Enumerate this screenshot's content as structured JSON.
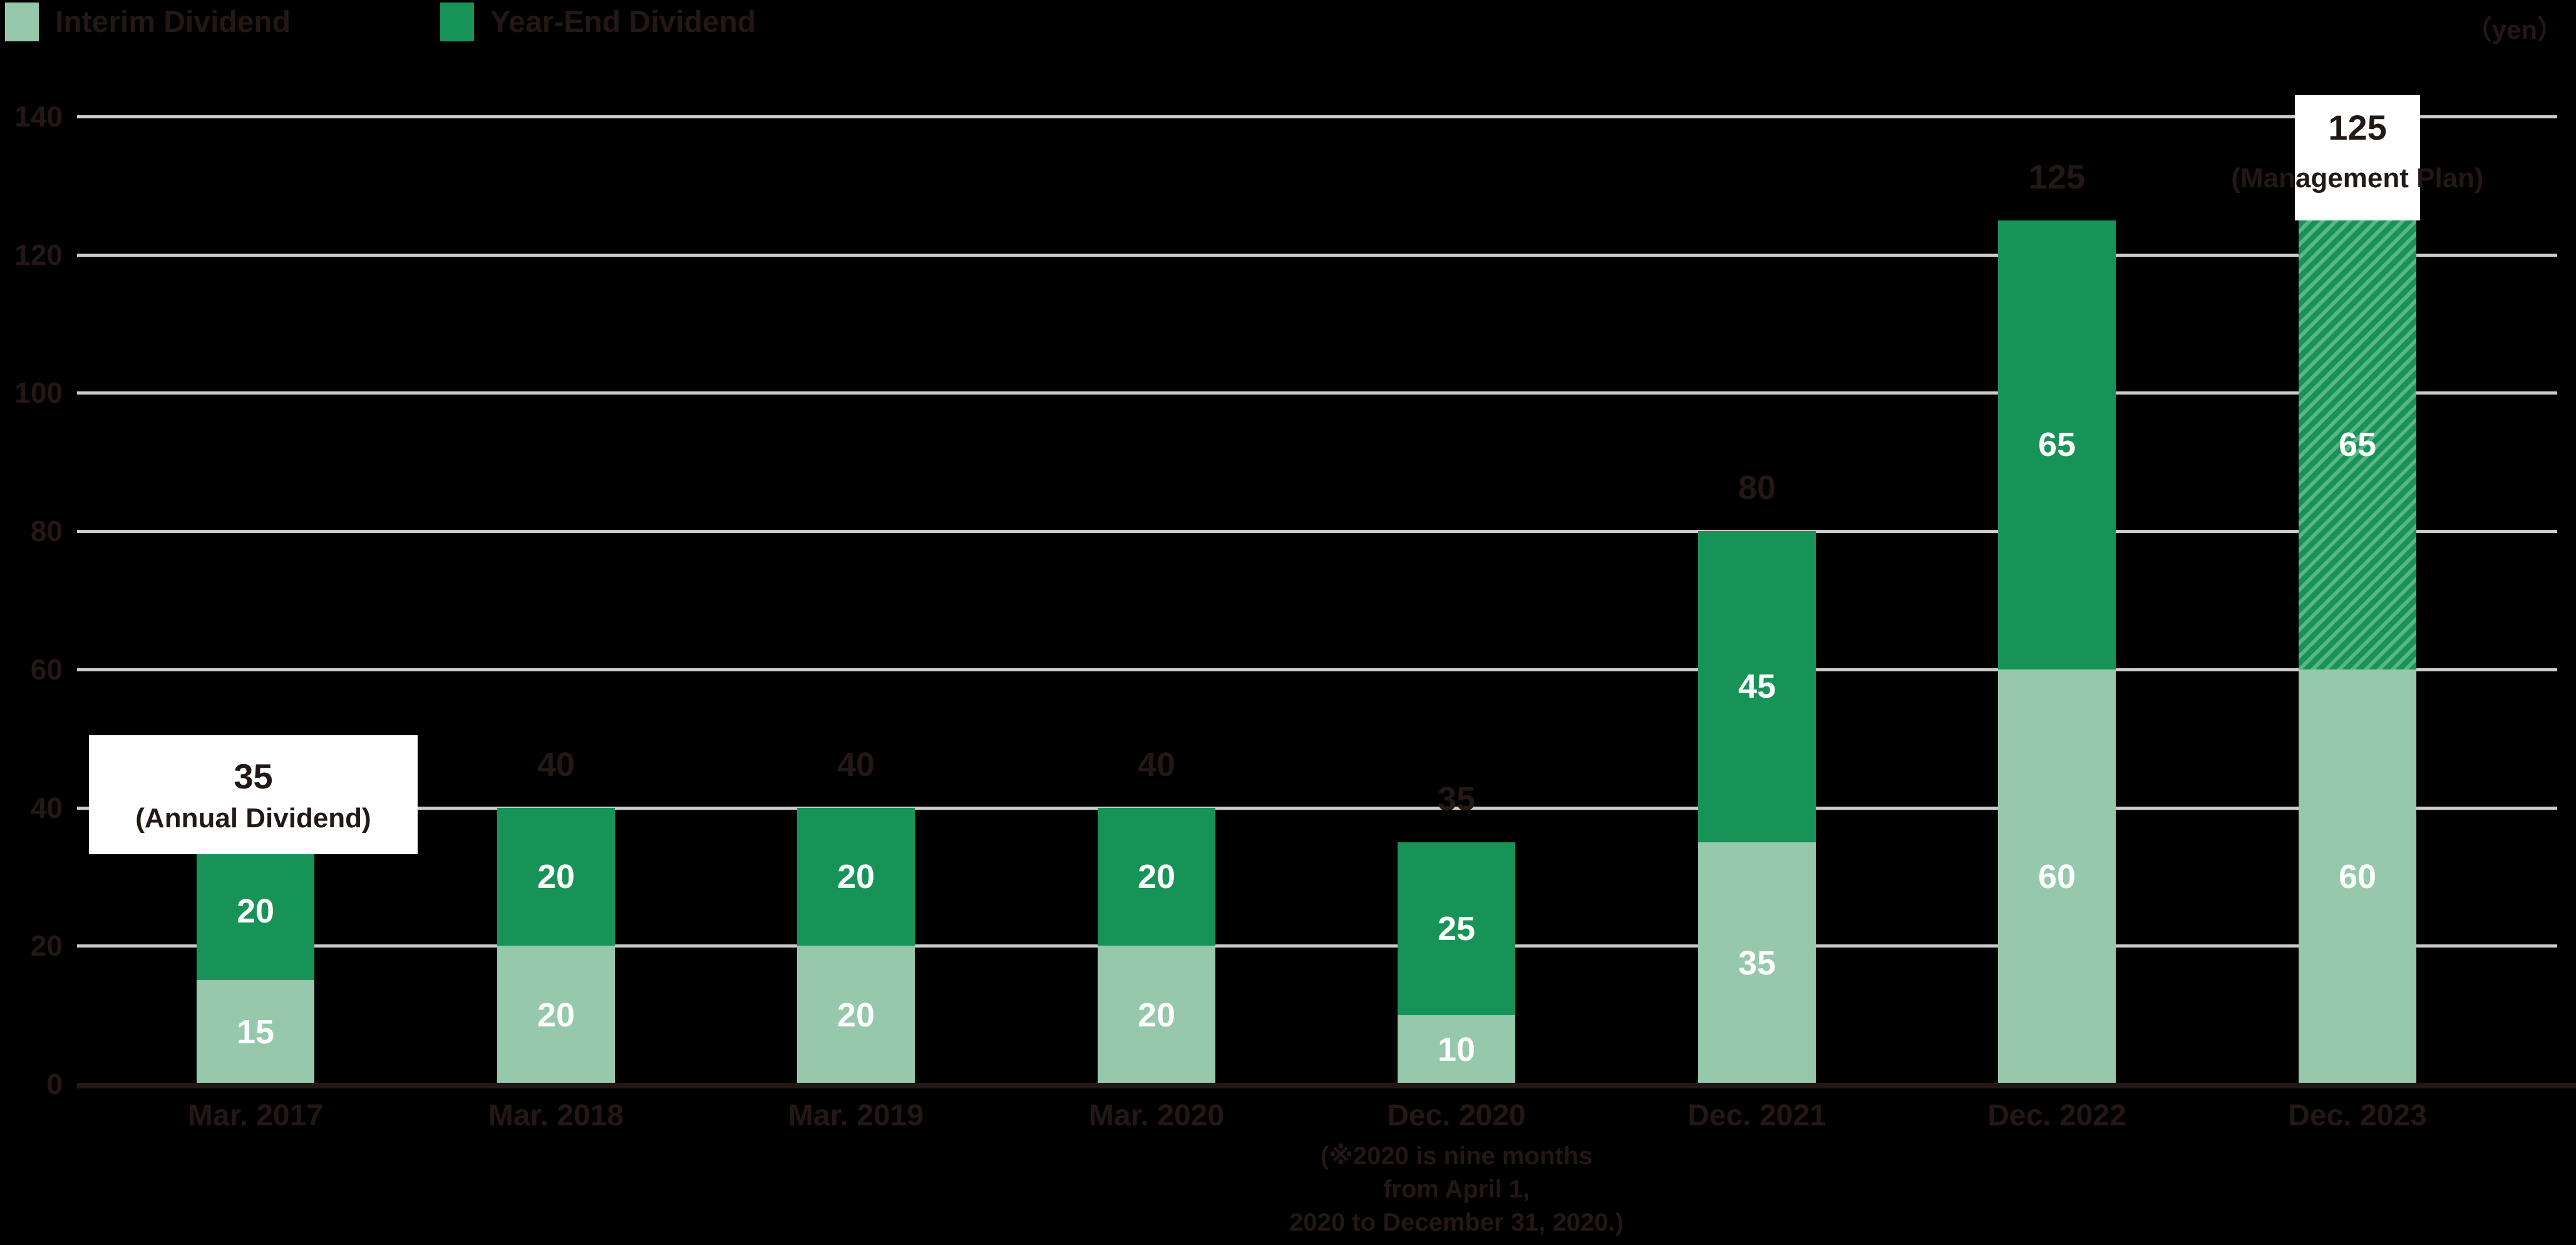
{
  "legend": {
    "items": [
      {
        "label": "Interim Dividend",
        "color": "#96C8AB"
      },
      {
        "label": "Year-End Dividend",
        "color": "#189358"
      }
    ]
  },
  "unit_label": "（yen）",
  "chart_data": {
    "type": "bar",
    "stacked": true,
    "unit": "yen",
    "categories": [
      "Mar. 2017",
      "Mar. 2018",
      "Mar. 2019",
      "Mar. 2020",
      "Dec. 2020",
      "Dec. 2021",
      "Dec. 2022",
      "Dec. 2023"
    ],
    "series": [
      {
        "name": "Interim Dividend",
        "color": "#96C8AB",
        "values": [
          15,
          20,
          20,
          20,
          10,
          35,
          60,
          60
        ]
      },
      {
        "name": "Year-End Dividend",
        "color": "#189358",
        "values": [
          20,
          20,
          20,
          20,
          25,
          45,
          65,
          65
        ]
      }
    ],
    "totals": [
      35,
      40,
      40,
      40,
      35,
      80,
      125,
      125
    ],
    "ylim": [
      0,
      140
    ],
    "yticks": [
      0,
      20,
      40,
      60,
      80,
      100,
      120,
      140
    ],
    "grid": true,
    "legend_position": "top-left",
    "hatch": {
      "applies_to": {
        "series": "Year-End Dividend",
        "category": "Dec. 2023"
      },
      "base_color": "#189358",
      "stripe_color": "#5BB687"
    }
  },
  "annotations": {
    "annual": {
      "category": "Mar. 2017",
      "value": "35",
      "caption": "(Annual Dividend)"
    },
    "plan": {
      "category": "Dec. 2023",
      "value": "125",
      "caption": "(Management Plan)"
    }
  },
  "footnote": {
    "lines": [
      "(※2020 is nine months",
      "from April 1,",
      "2020 to December 31, 2020.)"
    ]
  },
  "colors": {
    "background": "#000000",
    "text_dark": "#231815",
    "grid": "#CCCCCC",
    "axis_line": "#231815",
    "bar_value_text": "#FFFFFF",
    "callout_bg": "#FFFFFF"
  }
}
